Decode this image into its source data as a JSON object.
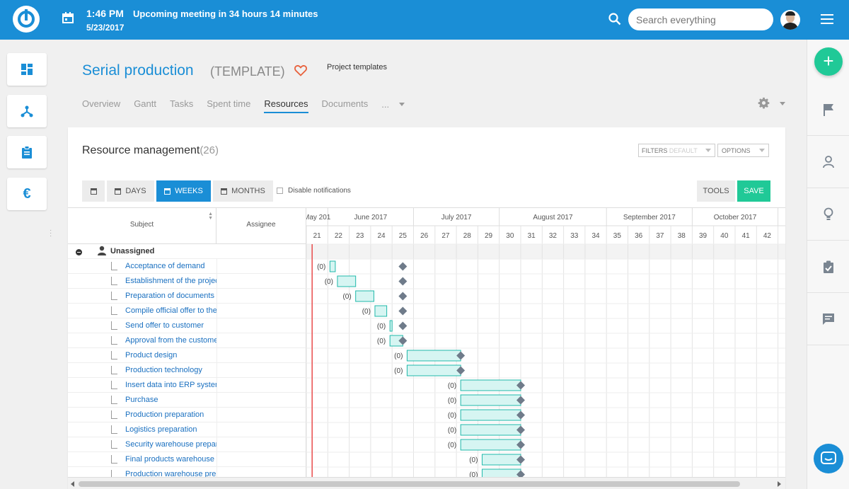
{
  "topbar": {
    "time": "1:46 PM",
    "date": "5/23/2017",
    "meeting": "Upcoming meeting in 34 hours 14 minutes",
    "search_placeholder": "Search everything",
    "color": "#1a8ed6"
  },
  "left_sidebar": [
    {
      "name": "dashboard-icon"
    },
    {
      "name": "hierarchy-icon"
    },
    {
      "name": "clipboard-icon"
    },
    {
      "name": "euro-icon",
      "glyph": "€"
    }
  ],
  "right_sidebar": [
    {
      "name": "flag-icon"
    },
    {
      "name": "user-icon"
    },
    {
      "name": "lightbulb-icon"
    },
    {
      "name": "checklist-icon"
    },
    {
      "name": "comment-icon"
    }
  ],
  "project": {
    "title": "Serial production",
    "tag": "(TEMPLATE)",
    "link": "Project templates"
  },
  "tabs": [
    {
      "label": "Overview",
      "active": false
    },
    {
      "label": "Gantt",
      "active": false
    },
    {
      "label": "Tasks",
      "active": false
    },
    {
      "label": "Spent time",
      "active": false
    },
    {
      "label": "Resources",
      "active": true
    },
    {
      "label": "Documents",
      "active": false
    },
    {
      "label": "...",
      "active": false
    }
  ],
  "panel": {
    "title": "Resource management",
    "count": "(26)",
    "filters_label": "FILTERS",
    "filters_value": "DEFAULT",
    "options_label": "OPTIONS",
    "days_label": "DAYS",
    "weeks_label": "WEEKS",
    "months_label": "MONTHS",
    "disable_notifications": "Disable notifications",
    "tools_label": "TOOLS",
    "save_label": "SAVE"
  },
  "grid": {
    "subject_header": "Subject",
    "assignee_header": "Assignee",
    "group_label": "Unassigned",
    "months": [
      {
        "label": "May 201",
        "span": [
          21,
          21
        ]
      },
      {
        "label": "June 2017",
        "span": [
          22,
          25
        ]
      },
      {
        "label": "July 2017",
        "span": [
          26,
          29
        ]
      },
      {
        "label": "August 2017",
        "span": [
          30,
          34
        ]
      },
      {
        "label": "September 2017",
        "span": [
          35,
          38
        ]
      },
      {
        "label": "October 2017",
        "span": [
          39,
          42
        ]
      }
    ],
    "weeks": [
      "21",
      "22",
      "23",
      "24",
      "25",
      "26",
      "27",
      "28",
      "29",
      "30",
      "31",
      "32",
      "33",
      "34",
      "35",
      "36",
      "37",
      "38",
      "39",
      "40",
      "41",
      "42",
      "4"
    ],
    "tasks": [
      {
        "label": "Acceptance of demand",
        "start": 22.1,
        "end": 22.35,
        "hours": "(0)",
        "milestone": 25.5
      },
      {
        "label": "Establishment of the project",
        "start": 22.45,
        "end": 23.3,
        "hours": "(0)",
        "milestone": 25.5
      },
      {
        "label": "Preparation of documents",
        "start": 23.3,
        "end": 24.15,
        "hours": "(0)",
        "milestone": 25.5
      },
      {
        "label": "Compile official offer to the customer",
        "start": 24.2,
        "end": 24.75,
        "hours": "(0)",
        "milestone": 25.5
      },
      {
        "label": "Send offer to customer",
        "start": 24.9,
        "end": 25.0,
        "hours": "(0)",
        "milestone": 25.5
      },
      {
        "label": "Approval from the customer",
        "start": 24.9,
        "end": 25.5,
        "hours": "(0)",
        "milestone": 25.5
      },
      {
        "label": "Product design",
        "start": 25.7,
        "end": 28.2,
        "hours": "(0)",
        "milestone": 28.2
      },
      {
        "label": "Production technology",
        "start": 25.7,
        "end": 28.2,
        "hours": "(0)",
        "milestone": 28.2
      },
      {
        "label": "Insert data into ERP system",
        "start": 28.2,
        "end": 31.0,
        "hours": "(0)",
        "milestone": 31.0
      },
      {
        "label": "Purchase",
        "start": 28.2,
        "end": 31.0,
        "hours": "(0)",
        "milestone": 31.0
      },
      {
        "label": "Production preparation",
        "start": 28.2,
        "end": 31.0,
        "hours": "(0)",
        "milestone": 31.0
      },
      {
        "label": "Logistics preparation",
        "start": 28.2,
        "end": 31.0,
        "hours": "(0)",
        "milestone": 31.0
      },
      {
        "label": "Security warehouse preparation",
        "start": 28.2,
        "end": 31.0,
        "hours": "(0)",
        "milestone": 31.0
      },
      {
        "label": "Final products warehouse",
        "start": 29.2,
        "end": 31.0,
        "hours": "(0)",
        "milestone": 31.0
      },
      {
        "label": "Production warehouse preparation",
        "start": 29.2,
        "end": 31.0,
        "hours": "(0)",
        "milestone": 31.0
      }
    ],
    "today_week": 21.27
  },
  "colors": {
    "accent": "#1a8ed6",
    "save": "#20c997",
    "bar_fill": "#d6f5f2",
    "bar_stroke": "#20b8aa",
    "milestone": "#6f7b8a",
    "today_line": "#e84c4c"
  }
}
